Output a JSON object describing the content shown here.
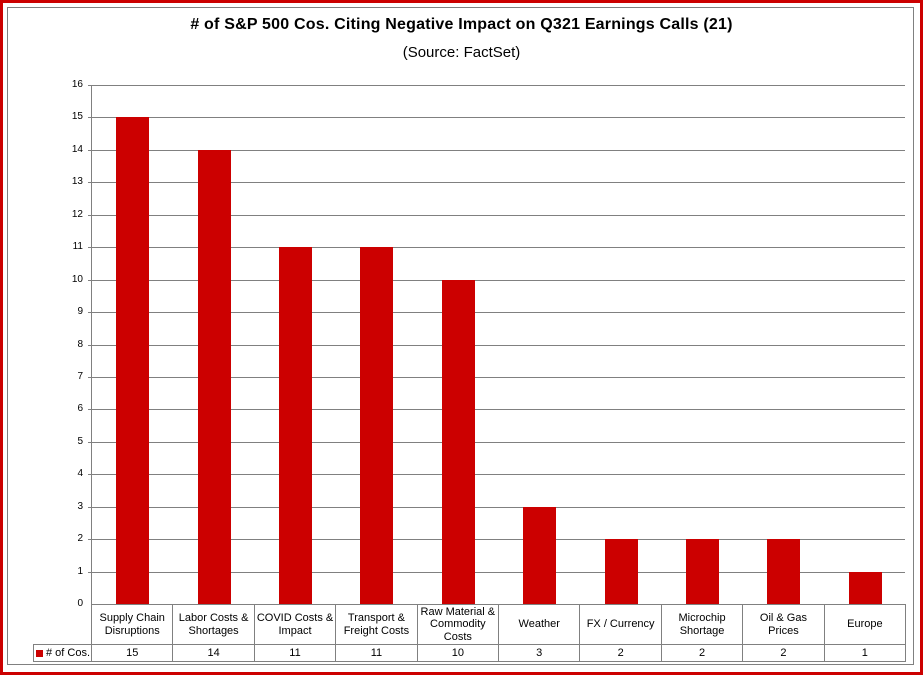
{
  "chart_data": {
    "type": "bar",
    "title": "# of S&P 500 Cos. Citing Negative Impact on Q321 Earnings Calls (21)",
    "subtitle": "(Source: FactSet)",
    "categories": [
      "Supply Chain Disruptions",
      "Labor Costs & Shortages",
      "COVID Costs & Impact",
      "Transport & Freight Costs",
      "Raw Material & Commodity Costs",
      "Weather",
      "FX / Currency",
      "Microchip Shortage",
      "Oil & Gas Prices",
      "Europe"
    ],
    "series": [
      {
        "name": "# of Cos.",
        "values": [
          15,
          14,
          11,
          11,
          10,
          3,
          2,
          2,
          2,
          1
        ]
      }
    ],
    "xlabel": "",
    "ylabel": "",
    "ylim": [
      0,
      16
    ],
    "ytick_step": 1,
    "grid": true,
    "legend_position": "data-table-row-left",
    "colors": {
      "bar": "#cc0000",
      "gridline": "#808080",
      "table_border": "#808080",
      "frame_outer": "#cc0000",
      "frame_inner": "#808080",
      "text": "#000000"
    }
  }
}
